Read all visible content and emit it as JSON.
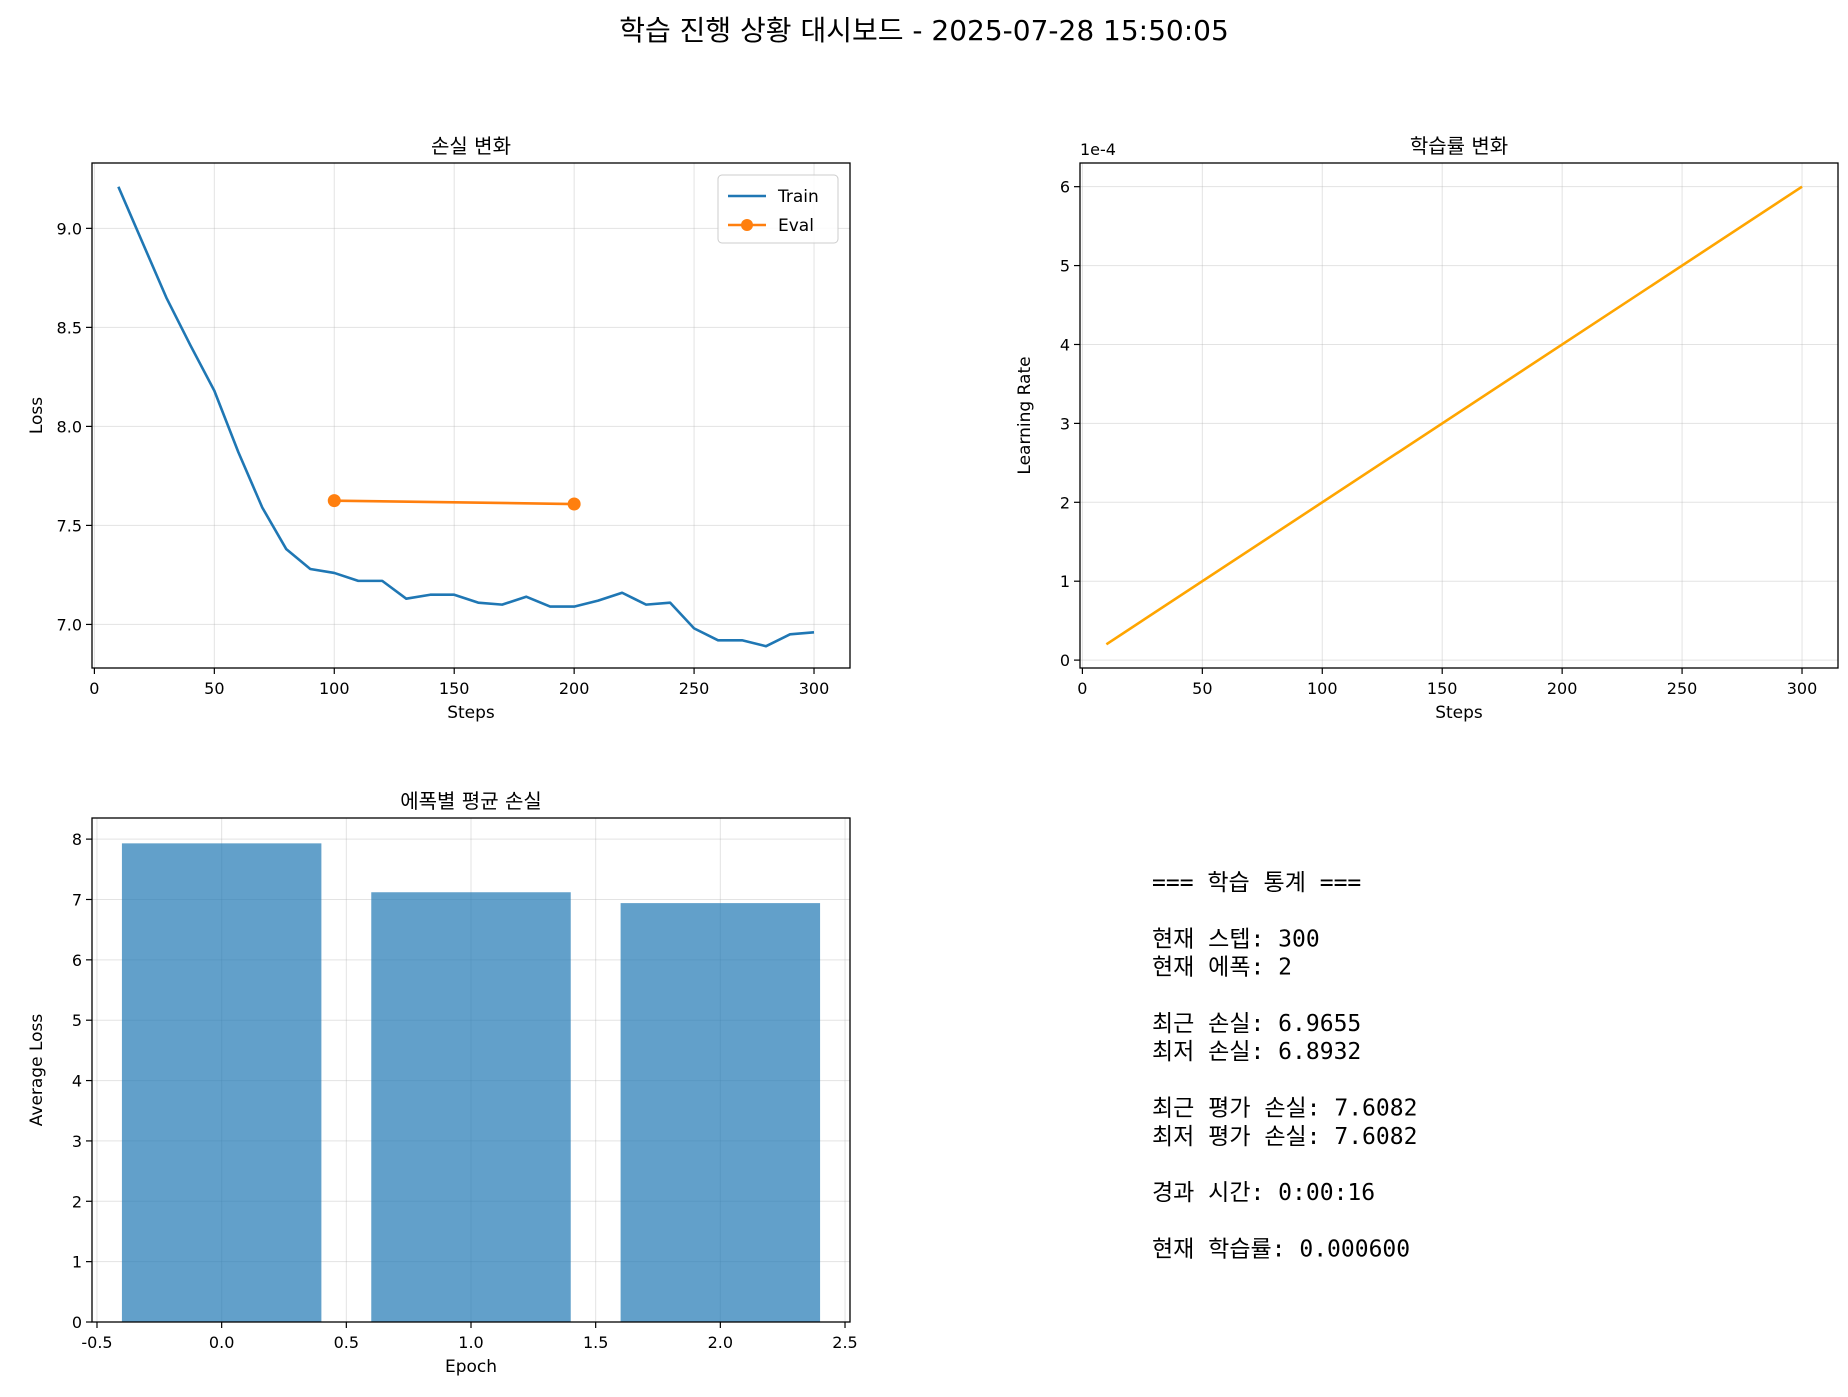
{
  "suptitle": "학습 진행 상황 대시보드 - 2025-07-28 15:50:05",
  "colors": {
    "train": "#1f77b4",
    "eval": "#ff7f0e",
    "lr": "#ffa500",
    "bar": "#1f77b4"
  },
  "chart_data": [
    {
      "type": "line",
      "title": "손실 변화",
      "xlabel": "Steps",
      "ylabel": "Loss",
      "xlim": [
        -1,
        315
      ],
      "ylim": [
        6.78,
        9.33
      ],
      "xticks": [
        0,
        50,
        100,
        150,
        200,
        250,
        300
      ],
      "yticks": [
        7.0,
        7.5,
        8.0,
        8.5,
        9.0
      ],
      "grid": true,
      "legend": "top-right",
      "series": [
        {
          "name": "Train",
          "x": [
            10,
            20,
            30,
            40,
            50,
            60,
            70,
            80,
            90,
            100,
            110,
            120,
            130,
            140,
            150,
            160,
            170,
            180,
            190,
            200,
            210,
            220,
            230,
            240,
            250,
            260,
            270,
            280,
            290,
            300
          ],
          "y": [
            9.21,
            8.93,
            8.65,
            8.41,
            8.18,
            7.87,
            7.59,
            7.38,
            7.28,
            7.26,
            7.22,
            7.22,
            7.13,
            7.15,
            7.15,
            7.11,
            7.1,
            7.14,
            7.09,
            7.09,
            7.12,
            7.16,
            7.1,
            7.11,
            6.98,
            6.92,
            6.92,
            6.89,
            6.95,
            6.96
          ]
        },
        {
          "name": "Eval",
          "x": [
            100,
            200
          ],
          "y": [
            7.625,
            7.608
          ],
          "marker": "circle"
        }
      ]
    },
    {
      "type": "line",
      "title": "학습률 변화",
      "xlabel": "Steps",
      "ylabel": "Learning Rate",
      "scale_label": "1e-4",
      "xlim": [
        -1,
        315
      ],
      "ylim": [
        -0.1,
        6.3
      ],
      "xticks": [
        0,
        50,
        100,
        150,
        200,
        250,
        300
      ],
      "yticks": [
        0,
        1,
        2,
        3,
        4,
        5,
        6
      ],
      "grid": true,
      "series": [
        {
          "x": [
            10,
            300
          ],
          "y": [
            0.2,
            6.0
          ]
        }
      ]
    },
    {
      "type": "bar",
      "title": "에폭별 평균 손실",
      "xlabel": "Epoch",
      "ylabel": "Average Loss",
      "xlim": [
        -0.52,
        2.52
      ],
      "ylim": [
        0,
        8.35
      ],
      "xticks": [
        -0.5,
        0.0,
        0.5,
        1.0,
        1.5,
        2.0,
        2.5
      ],
      "xtick_labels": [
        "-0.5",
        "0.0",
        "0.5",
        "1.0",
        "1.5",
        "2.0",
        "2.5"
      ],
      "yticks": [
        0,
        1,
        2,
        3,
        4,
        5,
        6,
        7,
        8
      ],
      "grid": true,
      "bar_width": 0.8,
      "x": [
        0,
        1,
        2
      ],
      "values": [
        7.93,
        7.12,
        6.94
      ]
    }
  ],
  "stats_lines": [
    "=== 학습 통계 ===",
    "",
    "현재 스텝: 300",
    "현재 에폭: 2",
    "",
    "최근 손실: 6.9655",
    "최저 손실: 6.8932",
    "",
    "최근 평가 손실: 7.6082",
    "최저 평가 손실: 7.6082",
    "",
    "경과 시간: 0:00:16",
    "",
    "현재 학습률: 0.000600"
  ]
}
